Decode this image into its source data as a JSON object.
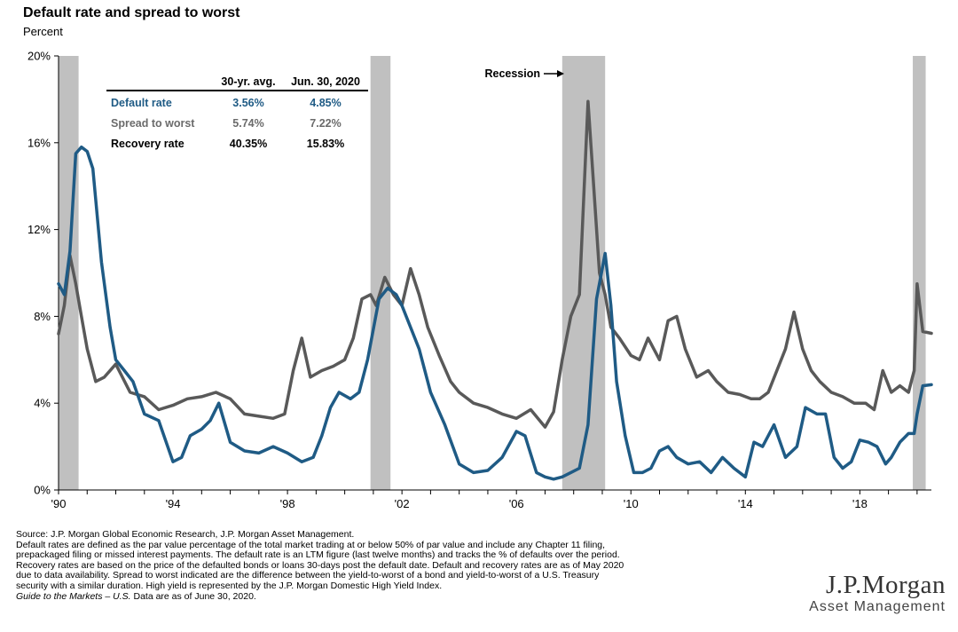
{
  "header": {
    "title": "Default rate and spread to worst",
    "subtitle": "Percent"
  },
  "chart_data": {
    "type": "line",
    "title": "Default rate and spread to worst",
    "ylabel": "Percent",
    "ylim": [
      0,
      20
    ],
    "xlim": [
      1990,
      2020.5
    ],
    "y_ticks": [
      "0%",
      "4%",
      "8%",
      "12%",
      "16%",
      "20%"
    ],
    "y_tick_values": [
      0,
      4,
      8,
      12,
      16,
      20
    ],
    "x_ticks": [
      "'90",
      "'94",
      "'98",
      "'02",
      "'06",
      "'10",
      "'14",
      "'18"
    ],
    "x_tick_values": [
      1990,
      1994,
      1998,
      2002,
      2006,
      2010,
      2014,
      2018
    ],
    "grid": false,
    "recession_label": "Recession",
    "recessions": [
      [
        1990.0,
        1990.7
      ],
      [
        2000.9,
        2001.6
      ],
      [
        2007.6,
        2009.1
      ],
      [
        2019.85,
        2020.3
      ]
    ],
    "series": [
      {
        "name": "Spread to worst",
        "color": "#595959",
        "x": [
          1990.0,
          1990.2,
          1990.4,
          1990.6,
          1990.8,
          1991.0,
          1991.3,
          1991.6,
          1992.0,
          1992.5,
          1993.0,
          1993.5,
          1994.0,
          1994.5,
          1995.0,
          1995.5,
          1996.0,
          1996.5,
          1997.0,
          1997.5,
          1997.9,
          1998.2,
          1998.5,
          1998.8,
          1999.2,
          1999.6,
          2000.0,
          2000.3,
          2000.6,
          2000.9,
          2001.1,
          2001.4,
          2001.7,
          2002.0,
          2002.3,
          2002.6,
          2002.9,
          2003.3,
          2003.7,
          2004.0,
          2004.5,
          2005.0,
          2005.5,
          2006.0,
          2006.5,
          2007.0,
          2007.3,
          2007.6,
          2007.9,
          2008.2,
          2008.5,
          2008.7,
          2008.9,
          2009.1,
          2009.3,
          2009.6,
          2010.0,
          2010.3,
          2010.6,
          2011.0,
          2011.3,
          2011.6,
          2011.9,
          2012.3,
          2012.7,
          2013.0,
          2013.4,
          2013.8,
          2014.2,
          2014.5,
          2014.8,
          2015.1,
          2015.4,
          2015.7,
          2016.0,
          2016.3,
          2016.6,
          2017.0,
          2017.4,
          2017.8,
          2018.2,
          2018.5,
          2018.8,
          2019.1,
          2019.4,
          2019.7,
          2019.9,
          2020.0,
          2020.2,
          2020.5
        ],
        "values": [
          7.2,
          8.5,
          10.8,
          9.5,
          8.0,
          6.5,
          5.0,
          5.2,
          5.8,
          4.5,
          4.3,
          3.7,
          3.9,
          4.2,
          4.3,
          4.5,
          4.2,
          3.5,
          3.4,
          3.3,
          3.5,
          5.5,
          7.0,
          5.2,
          5.5,
          5.7,
          6.0,
          7.0,
          8.8,
          9.0,
          8.5,
          9.8,
          9.0,
          8.5,
          10.2,
          9.0,
          7.5,
          6.2,
          5.0,
          4.5,
          4.0,
          3.8,
          3.5,
          3.3,
          3.7,
          2.9,
          3.6,
          6.0,
          8.0,
          9.0,
          17.9,
          14.0,
          10.0,
          9.0,
          7.5,
          7.0,
          6.2,
          6.0,
          7.0,
          6.0,
          7.8,
          8.0,
          6.5,
          5.2,
          5.5,
          5.0,
          4.5,
          4.4,
          4.2,
          4.2,
          4.5,
          5.5,
          6.5,
          8.2,
          6.5,
          5.5,
          5.0,
          4.5,
          4.3,
          4.0,
          4.0,
          3.7,
          5.5,
          4.5,
          4.8,
          4.5,
          5.5,
          9.5,
          7.3,
          7.22
        ]
      },
      {
        "name": "Default rate",
        "color": "#1f5b85",
        "x": [
          1990.0,
          1990.2,
          1990.4,
          1990.6,
          1990.8,
          1991.0,
          1991.2,
          1991.5,
          1991.8,
          1992.0,
          1992.3,
          1992.6,
          1993.0,
          1993.5,
          1994.0,
          1994.3,
          1994.6,
          1995.0,
          1995.3,
          1995.6,
          1996.0,
          1996.5,
          1997.0,
          1997.5,
          1998.0,
          1998.5,
          1998.9,
          1999.2,
          1999.5,
          1999.8,
          2000.2,
          2000.5,
          2000.8,
          2001.2,
          2001.5,
          2001.8,
          2002.0,
          2002.3,
          2002.6,
          2003.0,
          2003.5,
          2004.0,
          2004.5,
          2005.0,
          2005.5,
          2006.0,
          2006.3,
          2006.7,
          2007.0,
          2007.3,
          2007.6,
          2007.9,
          2008.2,
          2008.5,
          2008.8,
          2009.1,
          2009.3,
          2009.5,
          2009.8,
          2010.1,
          2010.4,
          2010.7,
          2011.0,
          2011.3,
          2011.6,
          2012.0,
          2012.4,
          2012.8,
          2013.2,
          2013.6,
          2014.0,
          2014.3,
          2014.6,
          2015.0,
          2015.4,
          2015.8,
          2016.1,
          2016.5,
          2016.8,
          2017.1,
          2017.4,
          2017.7,
          2018.0,
          2018.3,
          2018.6,
          2018.9,
          2019.1,
          2019.4,
          2019.7,
          2019.9,
          2020.0,
          2020.2,
          2020.5
        ],
        "values": [
          9.5,
          9.0,
          11.0,
          15.5,
          15.8,
          15.6,
          14.8,
          10.5,
          7.5,
          6.0,
          5.5,
          5.0,
          3.5,
          3.2,
          1.3,
          1.5,
          2.5,
          2.8,
          3.2,
          4.0,
          2.2,
          1.8,
          1.7,
          2.0,
          1.7,
          1.3,
          1.5,
          2.5,
          3.8,
          4.5,
          4.2,
          4.5,
          6.0,
          8.8,
          9.3,
          9.0,
          8.5,
          7.5,
          6.5,
          4.5,
          3.0,
          1.2,
          0.8,
          0.9,
          1.5,
          2.7,
          2.5,
          0.8,
          0.6,
          0.5,
          0.6,
          0.8,
          1.0,
          3.0,
          8.8,
          10.9,
          8.5,
          5.0,
          2.5,
          0.8,
          0.8,
          1.0,
          1.8,
          2.0,
          1.5,
          1.2,
          1.3,
          0.8,
          1.5,
          1.0,
          0.6,
          2.2,
          2.0,
          3.0,
          1.5,
          2.0,
          3.8,
          3.5,
          3.5,
          1.5,
          1.0,
          1.3,
          2.3,
          2.2,
          2.0,
          1.2,
          1.5,
          2.2,
          2.6,
          2.6,
          3.5,
          4.8,
          4.85
        ]
      }
    ],
    "stats_table": {
      "headers": [
        "",
        "30-yr. avg.",
        "Jun. 30, 2020"
      ],
      "rows": [
        {
          "label": "Default rate",
          "avg": "3.56%",
          "current": "4.85%",
          "color": "#1f5b85"
        },
        {
          "label": "Spread to worst",
          "avg": "5.74%",
          "current": "7.22%",
          "color": "#6b6b6b"
        },
        {
          "label": "Recovery rate",
          "avg": "40.35%",
          "current": "15.83%",
          "color": "#000000"
        }
      ]
    }
  },
  "footnote": {
    "lines": [
      "Source: J.P. Morgan Global Economic Research, J.P. Morgan Asset Management.",
      "Default rates are defined as the par value percentage of the total market trading at or below 50% of par value and include any Chapter 11 filing,",
      "prepackaged filing or missed interest payments. The default rate is an LTM figure (last twelve months) and tracks the % of defaults over the period.",
      "Recovery rates are based on the price of the defaulted bonds or loans 30-days post the default date. Default and recovery rates are as of May 2020",
      "due to data availability. Spread to worst indicated are the difference between the yield-to-worst of a bond and yield-to-worst of a U.S. Treasury",
      "security with a similar duration. High yield is represented by the J.P. Morgan Domestic High Yield Index."
    ],
    "guide_title": "Guide to the Markets – U.S.",
    "guide_rest": " Data are as of June 30, 2020."
  },
  "logo": {
    "main": "J.P.Morgan",
    "sub": "Asset Management"
  }
}
